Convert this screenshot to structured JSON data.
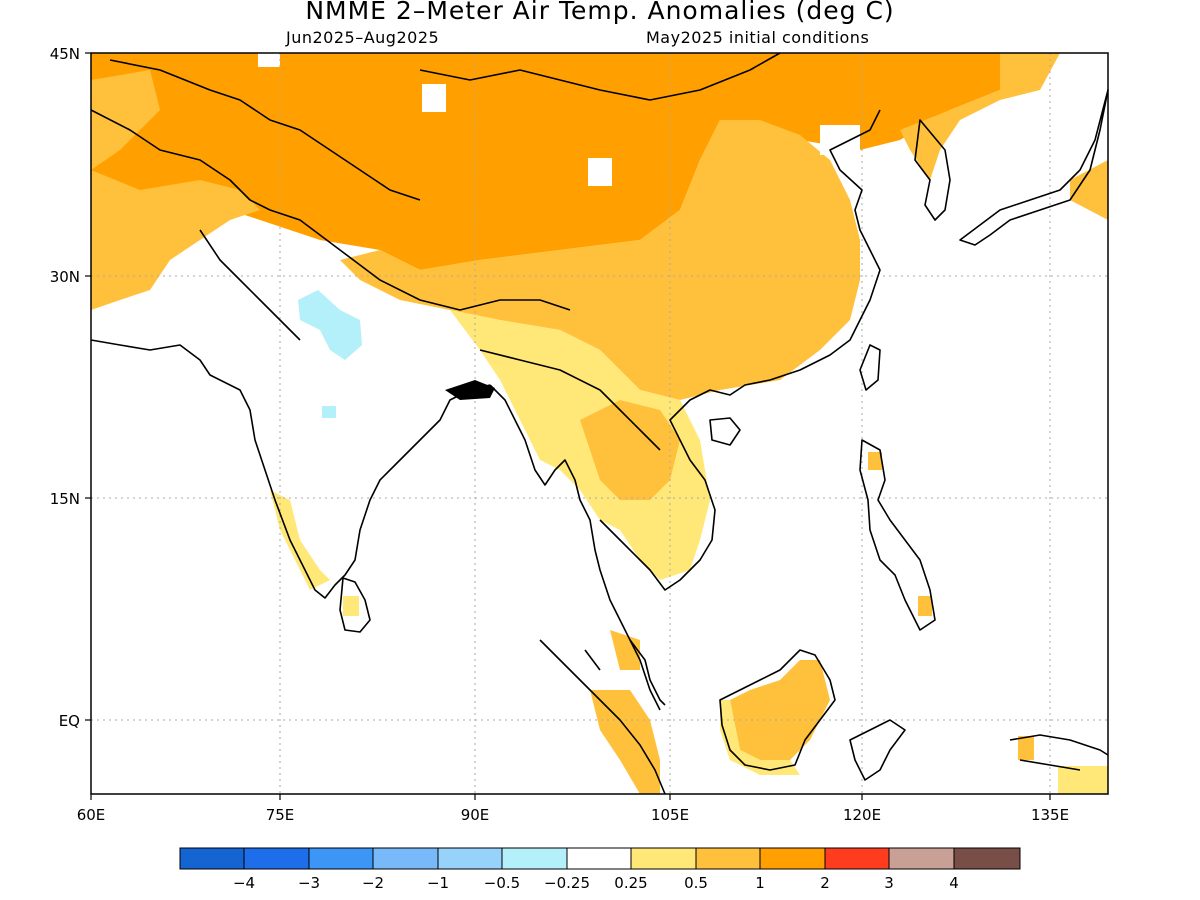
{
  "title": "NMME 2–Meter Air Temp. Anomalies (deg C)",
  "subtitle_left": "Jun2025–Aug2025",
  "subtitle_right": "May2025 initial conditions",
  "lon_ticks": [
    "60E",
    "75E",
    "90E",
    "105E",
    "120E",
    "135E"
  ],
  "lat_ticks": [
    "45N",
    "30N",
    "15N",
    "EQ"
  ],
  "colorbar": {
    "colors": [
      "#1464d2",
      "#1e6eeb",
      "#3c96f5",
      "#78b9fa",
      "#96d2fa",
      "#b4f0fa",
      "#ffffff",
      "#ffe878",
      "#ffc03c",
      "#ffa000",
      "#ff3c1e",
      "#c8a096",
      "#784e46"
    ],
    "labels": [
      "−4",
      "−3",
      "−2",
      "−1",
      "−0.5",
      "−0.25",
      "0.25",
      "0.5",
      "1",
      "2",
      "3",
      "4"
    ]
  },
  "palette": {
    "land_warm": "#ffa000",
    "land_mod": "#ffc03c",
    "land_light": "#ffe878",
    "land_cool": "#b4f0fa",
    "coast": "#000000",
    "grid": "#aaaaaa"
  }
}
